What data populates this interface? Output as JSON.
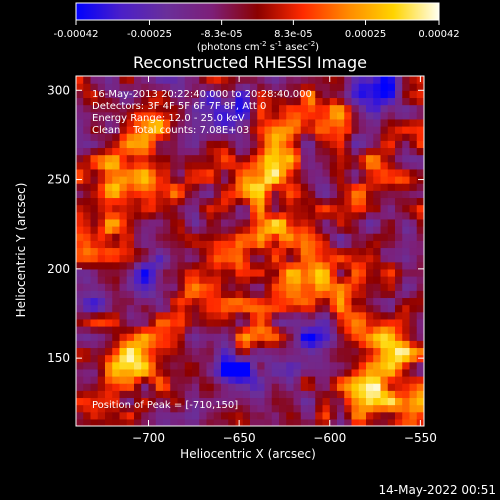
{
  "chart_data": {
    "type": "heatmap",
    "title": "Reconstructed RHESSI Image",
    "xlabel": "Heliocentric X (arcsec)",
    "ylabel": "Heliocentric Y (arcsec)",
    "xlim": [
      -740,
      -548
    ],
    "ylim": [
      112,
      308
    ],
    "x_ticks": [
      "-700",
      "-650",
      "-600",
      "-550"
    ],
    "y_ticks": [
      "150",
      "200",
      "250",
      "300"
    ],
    "colorbar": {
      "label_parts": [
        "(photons cm",
        "-2",
        " s",
        "-1",
        " asec",
        "-2",
        ")"
      ],
      "ticks": [
        "-0.00042",
        "-0.00025",
        "-8.3e-05",
        "8.3e-05",
        "0.00025",
        "0.00042"
      ],
      "range": [
        -0.00042,
        0.00042
      ],
      "colors": [
        "#0000ff",
        "#4b1fc8",
        "#6a2f9a",
        "#7d1f78",
        "#8b0000",
        "#ff2a00",
        "#ff8a00",
        "#ffd400",
        "#fffff0"
      ]
    },
    "annotations": {
      "date_range": "16-May-2013 20:22:40.000 to 20:28:40.000",
      "detectors": "Detectors: 3F 4F 5F 6F 7F 8F, Att 0",
      "energy": "Energy Range: 12.0 - 25.0 keV",
      "clean": "Clean    Total counts: 7.08E+03",
      "peak": "Position of Peak = [-710,150]"
    },
    "bright_regions": [
      {
        "x": -700,
        "y": 280,
        "intensity": 0.75
      },
      {
        "x": -718,
        "y": 250,
        "intensity": 0.65
      },
      {
        "x": -690,
        "y": 245,
        "intensity": 0.55
      },
      {
        "x": -725,
        "y": 220,
        "intensity": 0.55
      },
      {
        "x": -710,
        "y": 150,
        "intensity": 1.0
      },
      {
        "x": -680,
        "y": 185,
        "intensity": 0.5
      },
      {
        "x": -660,
        "y": 205,
        "intensity": 0.55
      },
      {
        "x": -640,
        "y": 250,
        "intensity": 0.75
      },
      {
        "x": -630,
        "y": 270,
        "intensity": 0.6
      },
      {
        "x": -625,
        "y": 220,
        "intensity": 0.85
      },
      {
        "x": -610,
        "y": 195,
        "intensity": 0.7
      },
      {
        "x": -600,
        "y": 290,
        "intensity": 0.6
      },
      {
        "x": -570,
        "y": 250,
        "intensity": 0.75
      },
      {
        "x": -585,
        "y": 175,
        "intensity": 0.55
      },
      {
        "x": -565,
        "y": 155,
        "intensity": 0.9
      },
      {
        "x": -580,
        "y": 130,
        "intensity": 0.75
      },
      {
        "x": -556,
        "y": 120,
        "intensity": 0.7
      },
      {
        "x": -640,
        "y": 165,
        "intensity": 0.5
      }
    ],
    "dim_regions": [
      {
        "x": -660,
        "y": 290,
        "intensity": -0.6
      },
      {
        "x": -575,
        "y": 300,
        "intensity": -0.9
      },
      {
        "x": -650,
        "y": 140,
        "intensity": -0.9
      },
      {
        "x": -700,
        "y": 200,
        "intensity": -0.5
      },
      {
        "x": -735,
        "y": 190,
        "intensity": -0.5
      },
      {
        "x": -610,
        "y": 160,
        "intensity": -0.5
      }
    ]
  },
  "footer": {
    "timestamp": "14-May-2022 00:51"
  }
}
